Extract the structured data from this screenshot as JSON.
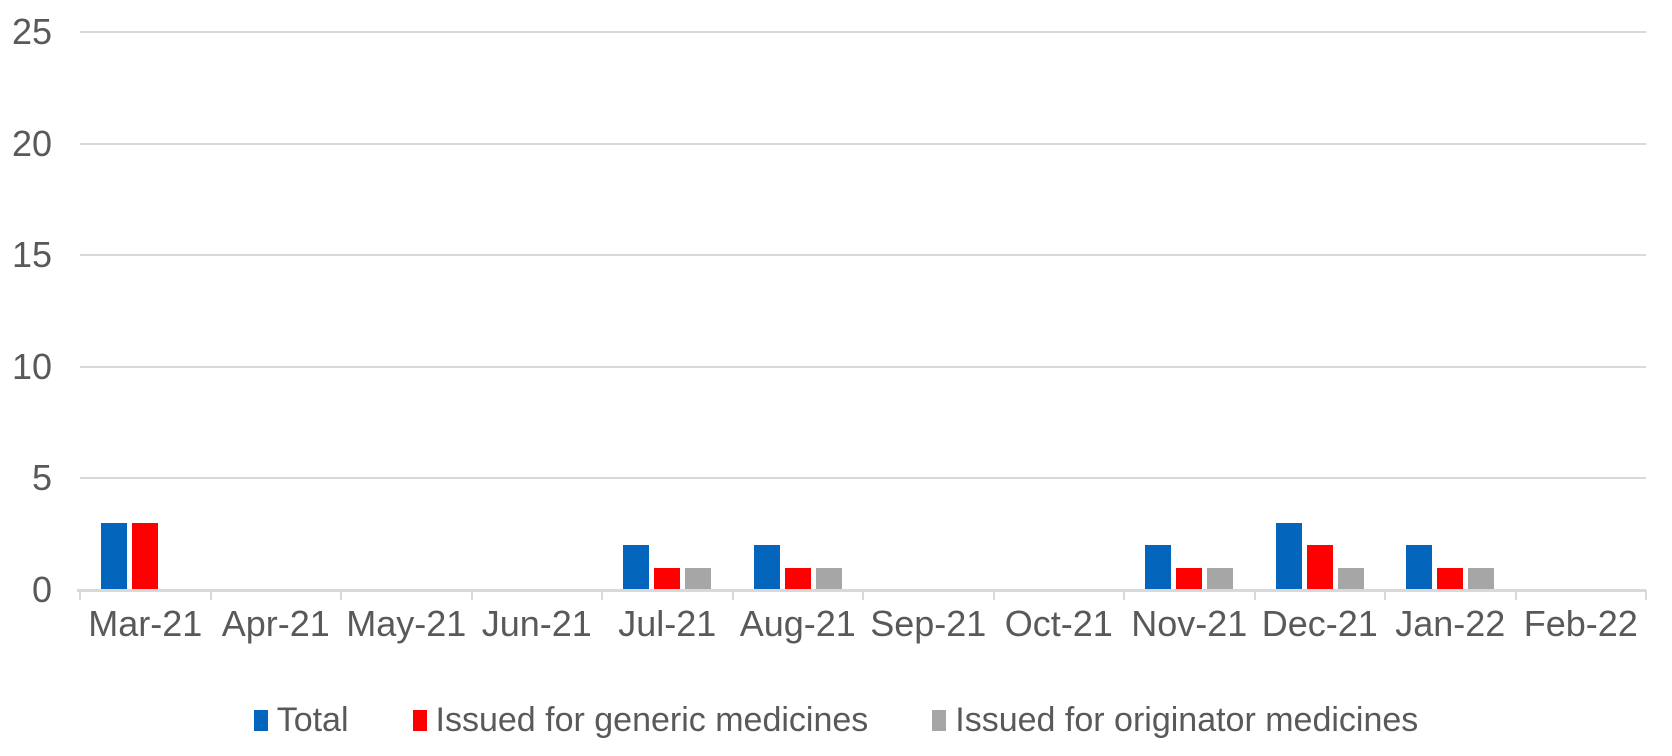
{
  "chart_data": {
    "type": "bar",
    "title": "",
    "xlabel": "",
    "ylabel": "",
    "categories": [
      "Mar-21",
      "Apr-21",
      "May-21",
      "Jun-21",
      "Jul-21",
      "Aug-21",
      "Sep-21",
      "Oct-21",
      "Nov-21",
      "Dec-21",
      "Jan-22",
      "Feb-22"
    ],
    "series": [
      {
        "name": "Total",
        "color": "#0366BC",
        "values": [
          3,
          0,
          0,
          0,
          2,
          2,
          0,
          0,
          2,
          3,
          2,
          0
        ]
      },
      {
        "name": "Issued for generic medicines",
        "color": "#FF0000",
        "values": [
          3,
          0,
          0,
          0,
          1,
          1,
          0,
          0,
          1,
          2,
          1,
          0
        ]
      },
      {
        "name": "Issued for originator medicines",
        "color": "#A6A6A6",
        "values": [
          0,
          0,
          0,
          0,
          1,
          1,
          0,
          0,
          1,
          1,
          1,
          0
        ]
      }
    ],
    "ylim": [
      0,
      25
    ],
    "ytick_step": 5,
    "ytick_labels": [
      "0",
      "5",
      "10",
      "15",
      "20",
      "25"
    ],
    "grid": true,
    "legend_position": "bottom",
    "gridline_color": "#D9D9D9",
    "axis_color": "#D9D9D9",
    "text_color": "#595959",
    "background_color": "#FFFFFF"
  }
}
